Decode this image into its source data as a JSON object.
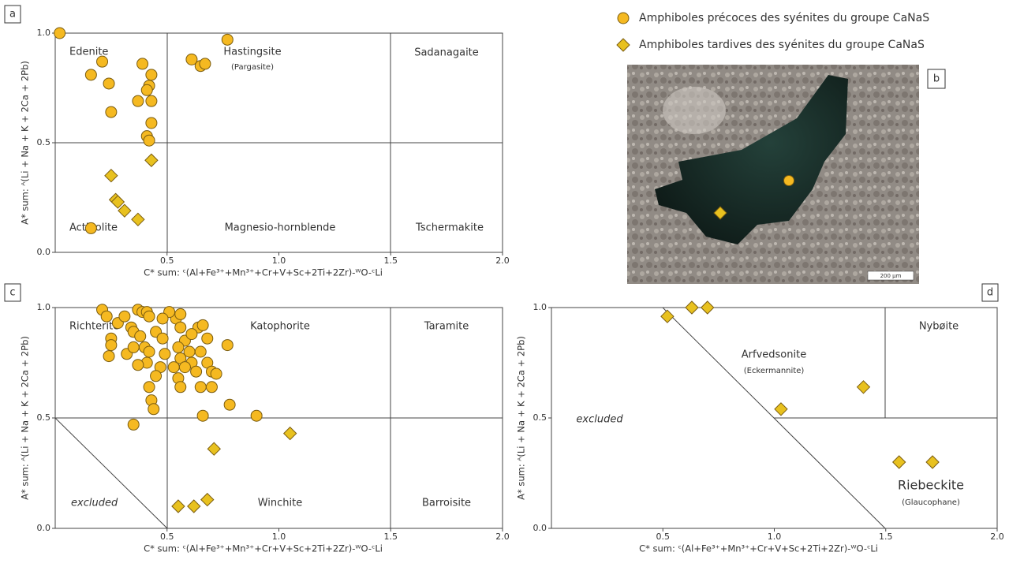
{
  "chart_data": [
    {
      "type": "scatter",
      "label": "a",
      "xlabel": "C* sum: ᶜ(Al+Fe³⁺+Mn³⁺+Cr+V+Sc+2Ti+2Zr)-ᵂO-ᶜLi",
      "ylabel": "A* sum: ᴬ(Li + Na + K + 2Ca + 2Pb)",
      "xlim": [
        0,
        2
      ],
      "ylim": [
        0,
        1
      ],
      "xticks": [
        0.5,
        {
          "value": 1,
          "label": "1.0"
        },
        1.5,
        {
          "value": 2,
          "label": "2.0"
        }
      ],
      "yticks": [
        {
          "value": 0,
          "label": "0.0"
        },
        0.5,
        {
          "value": 1,
          "label": "1.0"
        }
      ],
      "annotations": [
        "Edenite",
        "Hastingsite",
        "(Pargasite)",
        "Sadanagaite",
        "Actinolite",
        "Magnesio-hornblende",
        "Tschermakite"
      ],
      "series": [
        {
          "name": "Amphiboles précoces des syénites du groupe CaNaS",
          "marker": "circle",
          "color": "#f5b921",
          "x": [
            0.02,
            0.16,
            0.21,
            0.24,
            0.25,
            0.39,
            0.42,
            0.43,
            0.41,
            0.37,
            0.43,
            0.43,
            0.41,
            0.42,
            0.61,
            0.65,
            0.67,
            0.77,
            0.16
          ],
          "y": [
            1.0,
            0.81,
            0.87,
            0.77,
            0.64,
            0.86,
            0.76,
            0.81,
            0.74,
            0.69,
            0.69,
            0.59,
            0.53,
            0.51,
            0.88,
            0.85,
            0.86,
            0.97,
            0.11
          ]
        },
        {
          "name": "Amphiboles tardives des syénites du groupe CaNaS",
          "marker": "diamond",
          "color": "#e8c11f",
          "x": [
            0.43,
            0.25,
            0.27,
            0.28,
            0.31,
            0.37
          ],
          "y": [
            0.42,
            0.35,
            0.24,
            0.23,
            0.19,
            0.15
          ]
        }
      ]
    },
    {
      "type": "scatter",
      "label": "c",
      "xlabel": "C* sum: ᶜ(Al+Fe³⁺+Mn³⁺+Cr+V+Sc+2Ti+2Zr)-ᵂO-ᶜLi",
      "ylabel": "A* sum: ᴬ(Li + Na + K + 2Ca + 2Pb)",
      "xlim": [
        0,
        2
      ],
      "ylim": [
        0,
        1
      ],
      "xticks": [
        0.5,
        {
          "value": 1,
          "label": "1.0"
        },
        1.5,
        {
          "value": 2,
          "label": "2.0"
        }
      ],
      "yticks": [
        {
          "value": 0,
          "label": "0.0"
        },
        0.5,
        {
          "value": 1,
          "label": "1.0"
        }
      ],
      "annotations": [
        "Richterite",
        "Katophorite",
        "Taramite",
        "excluded",
        "Winchite",
        "Barroisite"
      ],
      "series": [
        {
          "name": "Amphiboles précoces des syénites du groupe CaNaS",
          "marker": "circle",
          "color": "#f5b921",
          "x": [
            0.21,
            0.23,
            0.25,
            0.25,
            0.24,
            0.28,
            0.31,
            0.34,
            0.35,
            0.37,
            0.39,
            0.41,
            0.42,
            0.38,
            0.4,
            0.42,
            0.41,
            0.37,
            0.32,
            0.35,
            0.45,
            0.48,
            0.49,
            0.47,
            0.45,
            0.42,
            0.43,
            0.44,
            0.35,
            0.54,
            0.56,
            0.56,
            0.58,
            0.55,
            0.56,
            0.53,
            0.55,
            0.56,
            0.6,
            0.61,
            0.63,
            0.64,
            0.66,
            0.68,
            0.65,
            0.68,
            0.7,
            0.72,
            0.65,
            0.7,
            0.77,
            0.78,
            0.66,
            0.9,
            0.58,
            0.61,
            0.51,
            0.48
          ],
          "y": [
            0.99,
            0.96,
            0.86,
            0.83,
            0.78,
            0.93,
            0.96,
            0.91,
            0.89,
            0.99,
            0.98,
            0.98,
            0.96,
            0.87,
            0.82,
            0.8,
            0.75,
            0.74,
            0.79,
            0.82,
            0.89,
            0.86,
            0.79,
            0.73,
            0.69,
            0.64,
            0.58,
            0.54,
            0.47,
            0.95,
            0.91,
            0.97,
            0.85,
            0.82,
            0.77,
            0.73,
            0.68,
            0.64,
            0.8,
            0.75,
            0.71,
            0.91,
            0.92,
            0.86,
            0.8,
            0.75,
            0.71,
            0.7,
            0.64,
            0.64,
            0.83,
            0.56,
            0.51,
            0.51,
            0.73,
            0.88,
            0.98,
            0.95
          ]
        },
        {
          "name": "Amphiboles tardives des syénites du groupe CaNaS",
          "marker": "diamond",
          "color": "#e8c11f",
          "x": [
            1.05,
            0.71,
            0.55,
            0.62,
            0.68
          ],
          "y": [
            0.43,
            0.36,
            0.1,
            0.1,
            0.13
          ]
        }
      ]
    },
    {
      "type": "scatter",
      "label": "d",
      "xlabel": "C* sum: ᶜ(Al+Fe³⁺+Mn³⁺+Cr+V+Sc+2Ti+2Zr)-ᵂO-ᶜLi",
      "ylabel": "A* sum: ᴬ(Li + Na + K + 2Ca + 2Pb)",
      "xlim": [
        0,
        2
      ],
      "ylim": [
        0,
        1
      ],
      "xticks": [
        0.5,
        {
          "value": 1,
          "label": "1.0"
        },
        1.5,
        {
          "value": 2,
          "label": "2.0"
        }
      ],
      "yticks": [
        {
          "value": 0,
          "label": "0.0"
        },
        0.5,
        {
          "value": 1,
          "label": "1.0"
        }
      ],
      "annotations": [
        "Arfvedsonite",
        "(Eckermannite)",
        "Nybøite",
        "excluded",
        "Riebeckite",
        "(Glaucophane)"
      ],
      "series": [
        {
          "name": "Amphiboles tardives des syénites du groupe CaNaS",
          "marker": "diamond",
          "color": "#e8c11f",
          "x": [
            0.52,
            0.63,
            0.7,
            1.03,
            1.4,
            1.56,
            1.71
          ],
          "y": [
            0.96,
            1.0,
            1.0,
            0.54,
            0.64,
            0.3,
            0.3
          ]
        }
      ]
    }
  ],
  "photo": {
    "label": "b",
    "scale_bar": "200 µm"
  }
}
